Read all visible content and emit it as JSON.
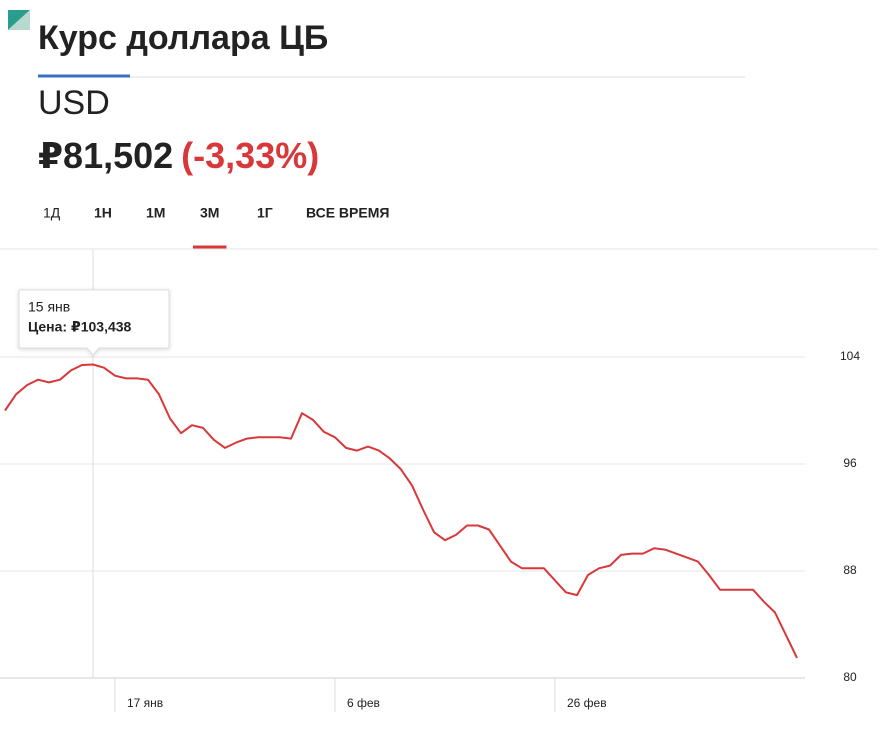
{
  "header": {
    "title": "Курс доллара ЦБ",
    "ticker": "USD",
    "price": "₽81,502",
    "change": "(-3,33%)"
  },
  "periods": [
    "1Д",
    "1Н",
    "1М",
    "3М",
    "1Г",
    "ВСЕ ВРЕМЯ"
  ],
  "active_period": "3М",
  "chart_data": {
    "type": "line",
    "categories": [
      null,
      null,
      null,
      null,
      null,
      null,
      null,
      null,
      null,
      null,
      "17 янв",
      null,
      null,
      null,
      null,
      null,
      null,
      null,
      null,
      null,
      null,
      null,
      null,
      null,
      null,
      null,
      null,
      null,
      null,
      null,
      "6 фев",
      null,
      null,
      null,
      null,
      null,
      null,
      null,
      null,
      null,
      null,
      null,
      null,
      null,
      null,
      null,
      null,
      null,
      null,
      null,
      "26 фев",
      null,
      null,
      null,
      null,
      null,
      null,
      null,
      null,
      null,
      null,
      null,
      null,
      null,
      null,
      null,
      null,
      null,
      null,
      null,
      null,
      null,
      null
    ],
    "series": [
      {
        "name": "USD",
        "color": "#d9383a",
        "values": [
          100.0,
          101.2,
          101.9,
          102.3,
          102.1,
          102.3,
          103.0,
          103.4,
          103.438,
          103.2,
          102.6,
          102.4,
          102.4,
          102.3,
          101.2,
          99.4,
          98.3,
          98.9,
          98.7,
          97.8,
          97.2,
          97.6,
          97.9,
          98.0,
          98.0,
          98.0,
          97.9,
          99.8,
          99.3,
          98.4,
          98.0,
          97.2,
          97.0,
          97.3,
          97.0,
          96.4,
          95.6,
          94.4,
          92.6,
          90.9,
          90.3,
          90.7,
          91.4,
          91.4,
          91.1,
          89.9,
          88.7,
          88.2,
          88.2,
          88.2,
          87.3,
          86.4,
          86.2,
          87.7,
          88.2,
          88.4,
          89.2,
          89.3,
          89.3,
          89.7,
          89.6,
          89.3,
          89.0,
          88.7,
          87.7,
          86.6,
          86.6,
          86.6,
          86.6,
          85.7,
          84.9,
          83.2,
          81.502
        ]
      }
    ],
    "ylim": [
      80,
      112
    ],
    "yticks": [
      80,
      88,
      96,
      104
    ],
    "grid": true,
    "tooltip": {
      "date": "15 янв",
      "text": "Цена: ₽103,438"
    }
  }
}
